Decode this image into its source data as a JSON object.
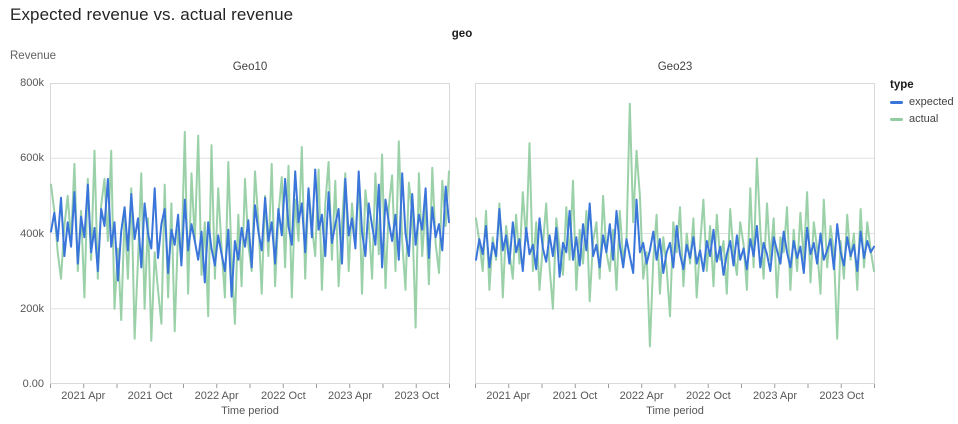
{
  "title": "Expected revenue vs. actual revenue",
  "facet_header": "geo",
  "y_axis": {
    "label": "Revenue",
    "ticks": [
      "800k",
      "600k",
      "400k",
      "200k",
      "0.00"
    ],
    "min": 0,
    "max": 800
  },
  "x_axis": {
    "label": "Time period",
    "tick_labels": [
      "2021 Apr",
      "2021 Oct",
      "2022 Apr",
      "2022 Oct",
      "2023 Apr",
      "2023 Oct"
    ],
    "tick_months": [
      3,
      9,
      15,
      21,
      27,
      33
    ],
    "domain_months": 36,
    "minor_tick_every_months": 3
  },
  "legend": {
    "title": "type",
    "items": [
      {
        "label": "expected",
        "color": "#3a76da"
      },
      {
        "label": "actual",
        "color": "#92cda1"
      }
    ]
  },
  "colors": {
    "panel_border": "#d9d9d9",
    "gridline": "#e2e2e2",
    "tick": "#9a9a9a",
    "expected": "#3a76da",
    "actual": "#92cda1"
  },
  "chart_data": [
    {
      "type": "line",
      "facet": "Geo10",
      "x_range": [
        "2021 Jan",
        "2023 Dec"
      ],
      "y_unit": "thousands",
      "y_max": 800,
      "series": [
        {
          "name": "expected",
          "color": "#3a76da",
          "values": [
            405,
            455,
            380,
            495,
            340,
            430,
            365,
            510,
            320,
            445,
            390,
            530,
            350,
            415,
            300,
            465,
            420,
            545,
            365,
            430,
            275,
            405,
            470,
            355,
            505,
            385,
            440,
            310,
            480,
            400,
            360,
            520,
            335,
            425,
            465,
            295,
            410,
            370,
            450,
            315,
            490,
            355,
            425,
            380,
            330,
            405,
            270,
            430,
            360,
            315,
            395,
            345,
            300,
            410,
            232,
            380,
            330,
            415,
            365,
            435,
            310,
            475,
            405,
            355,
            495,
            380,
            430,
            320,
            465,
            395,
            545,
            420,
            370,
            565,
            430,
            480,
            350,
            520,
            390,
            570,
            410,
            450,
            340,
            510,
            375,
            425,
            465,
            320,
            545,
            395,
            440,
            360,
            565,
            405,
            340,
            480,
            420,
            370,
            530,
            310,
            490,
            430,
            380,
            450,
            330,
            560,
            400,
            340,
            505,
            370,
            450,
            410,
            520,
            335,
            470,
            390,
            425,
            355,
            525,
            430
          ]
        },
        {
          "name": "actual",
          "color": "#92cda1",
          "values": [
            530,
            460,
            350,
            280,
            420,
            500,
            380,
            585,
            300,
            460,
            230,
            545,
            330,
            620,
            280,
            475,
            545,
            380,
            620,
            200,
            360,
            170,
            450,
            280,
            520,
            120,
            330,
            560,
            200,
            440,
            115,
            350,
            250,
            160,
            530,
            230,
            480,
            140,
            410,
            330,
            670,
            240,
            560,
            380,
            660,
            290,
            430,
            180,
            635,
            280,
            520,
            360,
            230,
            590,
            330,
            160,
            450,
            260,
            545,
            370,
            300,
            565,
            430,
            240,
            500,
            340,
            585,
            260,
            450,
            550,
            310,
            580,
            230,
            490,
            380,
            630,
            280,
            520,
            420,
            340,
            570,
            250,
            480,
            590,
            330,
            540,
            260,
            430,
            560,
            300,
            480,
            370,
            550,
            240,
            515,
            430,
            280,
            560,
            345,
            610,
            255,
            470,
            555,
            300,
            645,
            380,
            250,
            535,
            455,
            150,
            560,
            340,
            480,
            265,
            575,
            375,
            295,
            540,
            420,
            565
          ]
        }
      ]
    },
    {
      "type": "line",
      "facet": "Geo23",
      "x_range": [
        "2021 Jan",
        "2023 Dec"
      ],
      "y_unit": "thousands",
      "y_max": 800,
      "series": [
        {
          "name": "expected",
          "color": "#3a76da",
          "values": [
            330,
            385,
            345,
            420,
            310,
            375,
            340,
            465,
            355,
            395,
            320,
            430,
            350,
            385,
            300,
            415,
            345,
            370,
            305,
            440,
            360,
            325,
            395,
            340,
            415,
            285,
            375,
            350,
            460,
            330,
            390,
            315,
            425,
            355,
            480,
            340,
            370,
            310,
            395,
            350,
            425,
            330,
            460,
            370,
            310,
            385,
            340,
            295,
            490,
            350,
            375,
            320,
            355,
            405,
            330,
            385,
            295,
            350,
            375,
            310,
            420,
            345,
            305,
            370,
            335,
            390,
            320,
            355,
            300,
            380,
            340,
            410,
            325,
            365,
            290,
            345,
            380,
            315,
            395,
            330,
            360,
            305,
            385,
            340,
            420,
            310,
            375,
            345,
            300,
            390,
            355,
            320,
            405,
            350,
            310,
            380,
            335,
            365,
            295,
            415,
            345,
            375,
            320,
            400,
            330,
            355,
            385,
            305,
            425,
            350,
            315,
            390,
            340,
            370,
            300,
            405,
            335,
            380,
            350,
            365
          ]
        },
        {
          "name": "actual",
          "color": "#92cda1",
          "values": [
            440,
            380,
            300,
            460,
            250,
            390,
            330,
            480,
            230,
            420,
            350,
            280,
            450,
            320,
            510,
            380,
            640,
            300,
            430,
            250,
            370,
            480,
            310,
            200,
            440,
            360,
            290,
            470,
            330,
            540,
            250,
            410,
            320,
            460,
            220,
            380,
            430,
            280,
            500,
            350,
            300,
            410,
            250,
            460,
            330,
            380,
            745,
            430,
            620,
            500,
            280,
            350,
            100,
            330,
            450,
            240,
            390,
            310,
            180,
            430,
            350,
            470,
            260,
            400,
            320,
            440,
            230,
            370,
            490,
            300,
            420,
            260,
            450,
            330,
            380,
            240,
            465,
            350,
            290,
            430,
            370,
            250,
            520,
            310,
            600,
            410,
            280,
            480,
            330,
            440,
            230,
            390,
            350,
            470,
            250,
            410,
            300,
            455,
            330,
            510,
            270,
            430,
            360,
            240,
            490,
            310,
            420,
            350,
            120,
            380,
            280,
            450,
            330,
            400,
            250,
            465,
            310,
            430,
            355,
            300
          ]
        }
      ]
    }
  ]
}
